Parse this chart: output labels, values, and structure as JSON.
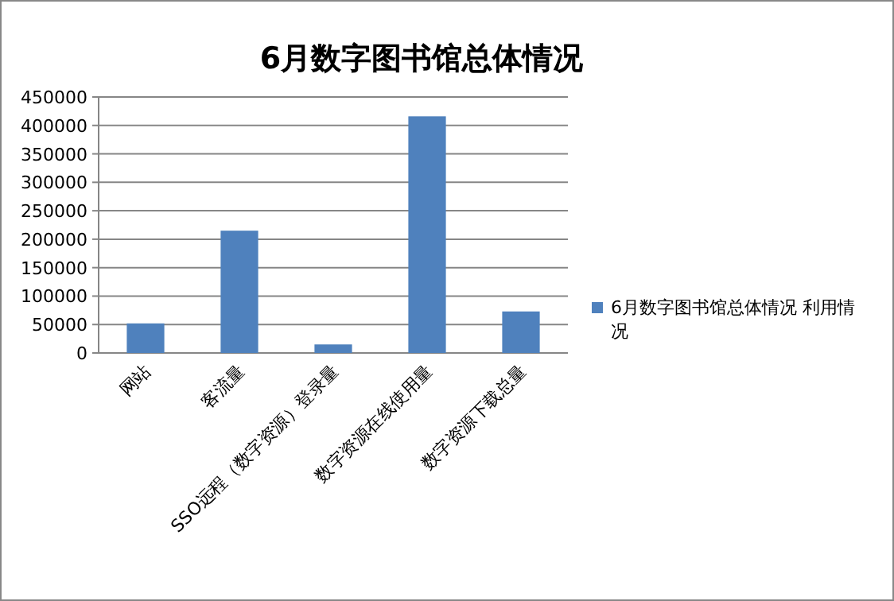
{
  "chart_data": {
    "type": "bar",
    "title": "6月数字图书馆总体情况",
    "categories": [
      "网站",
      "客流量",
      "SSO远程（数字资源）登录量",
      "数字资源在线使用量",
      "数字资源下载总量"
    ],
    "series": [
      {
        "name": "6月数字图书馆总体情况 利用情况",
        "color": "#4f81bd",
        "values": [
          52000,
          215000,
          15000,
          416000,
          73000
        ]
      }
    ],
    "ylim": [
      0,
      450000
    ],
    "yticks": [
      0,
      50000,
      100000,
      150000,
      200000,
      250000,
      300000,
      350000,
      400000,
      450000
    ],
    "grid": "y",
    "legend": "right"
  }
}
